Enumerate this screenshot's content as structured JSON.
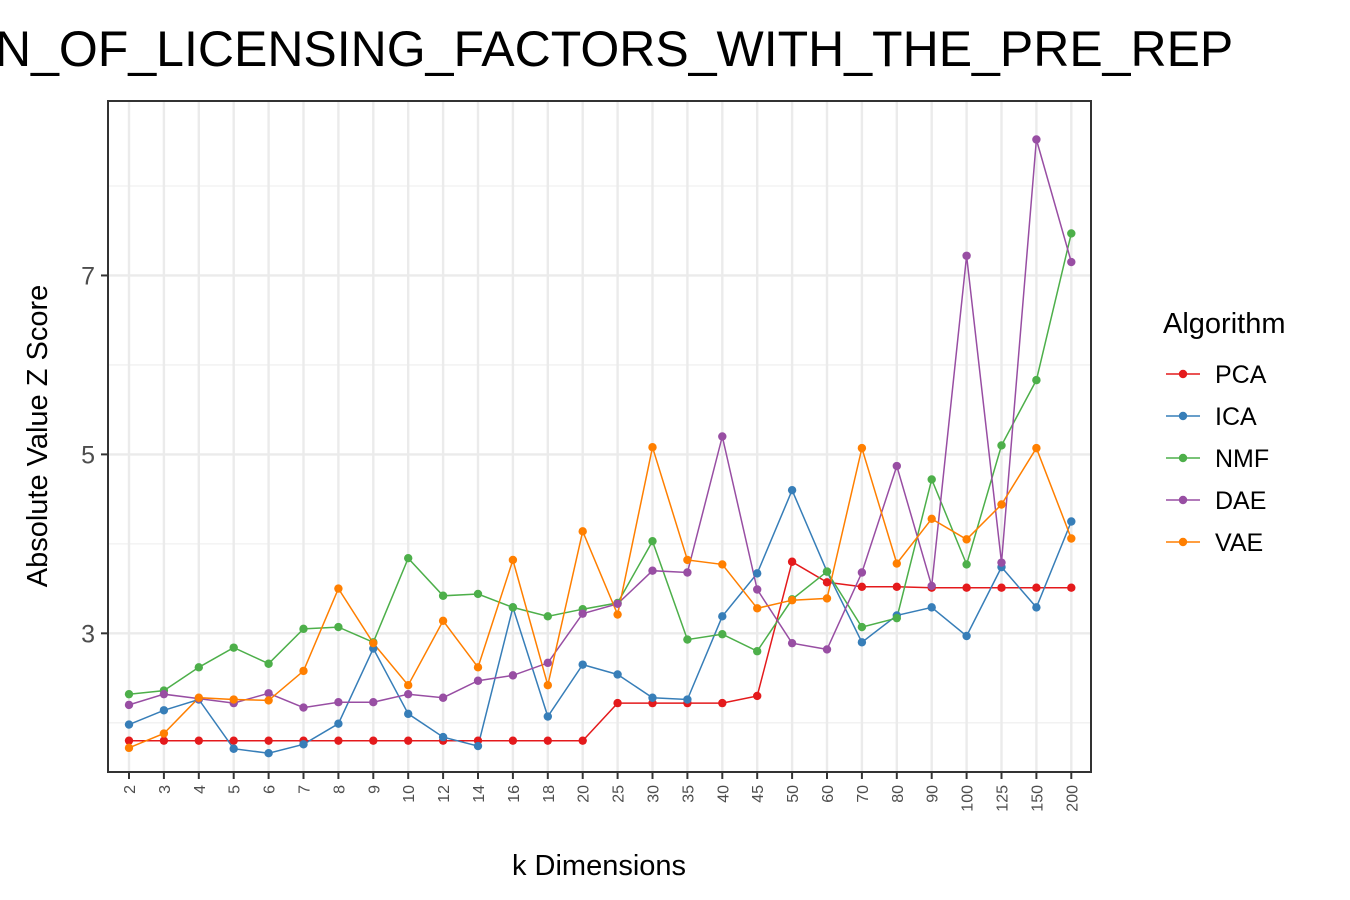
{
  "chart_data": {
    "type": "line",
    "title": "N_OF_LICENSING_FACTORS_WITH_THE_PRE_REP",
    "xlabel": "k Dimensions",
    "ylabel": "Absolute Value Z Score",
    "categories": [
      "2",
      "3",
      "4",
      "5",
      "6",
      "7",
      "8",
      "9",
      "10",
      "12",
      "14",
      "16",
      "18",
      "20",
      "25",
      "30",
      "35",
      "40",
      "45",
      "50",
      "60",
      "70",
      "80",
      "90",
      "100",
      "125",
      "150",
      "200"
    ],
    "ylim": [
      1.45,
      8.95
    ],
    "yticks": [
      3,
      5,
      7
    ],
    "grid": true,
    "legend_title": "Algorithm",
    "legend_position": "right",
    "series": [
      {
        "name": "PCA",
        "color": "#E41A1C",
        "values": [
          1.8,
          1.8,
          1.8,
          1.8,
          1.8,
          1.8,
          1.8,
          1.8,
          1.8,
          1.8,
          1.8,
          1.8,
          1.8,
          1.8,
          2.22,
          2.22,
          2.22,
          2.22,
          2.3,
          3.8,
          3.57,
          3.52,
          3.52,
          3.51,
          3.51,
          3.51,
          3.51,
          3.51
        ]
      },
      {
        "name": "ICA",
        "color": "#377EB8",
        "values": [
          1.98,
          2.14,
          2.26,
          1.71,
          1.66,
          1.76,
          1.99,
          2.83,
          2.1,
          1.84,
          1.74,
          3.29,
          2.07,
          2.65,
          2.54,
          2.28,
          2.26,
          3.19,
          3.67,
          4.6,
          3.69,
          2.9,
          3.2,
          3.29,
          2.97,
          3.74,
          3.29,
          4.25
        ]
      },
      {
        "name": "NMF",
        "color": "#4DAF4A",
        "values": [
          2.32,
          2.36,
          2.62,
          2.84,
          2.66,
          3.05,
          3.07,
          2.9,
          3.84,
          3.42,
          3.44,
          3.29,
          3.19,
          3.27,
          3.34,
          4.03,
          2.93,
          2.99,
          2.8,
          3.38,
          3.69,
          3.07,
          3.17,
          4.72,
          3.77,
          5.1,
          5.83,
          7.47
        ]
      },
      {
        "name": "DAE",
        "color": "#984EA3",
        "values": [
          2.2,
          2.32,
          2.27,
          2.22,
          2.33,
          2.17,
          2.23,
          2.23,
          2.32,
          2.28,
          2.47,
          2.53,
          2.67,
          3.22,
          3.33,
          3.7,
          3.68,
          5.2,
          3.49,
          2.89,
          2.82,
          3.68,
          4.87,
          3.53,
          7.22,
          3.79,
          8.52,
          7.15
        ]
      },
      {
        "name": "VAE",
        "color": "#FF7F00",
        "values": [
          1.72,
          1.88,
          2.28,
          2.26,
          2.25,
          2.58,
          3.5,
          2.89,
          2.42,
          3.14,
          2.62,
          3.82,
          2.42,
          4.14,
          3.21,
          5.08,
          3.82,
          3.77,
          3.28,
          3.37,
          3.39,
          5.07,
          3.78,
          4.28,
          4.05,
          4.44,
          5.07,
          4.06
        ]
      }
    ]
  }
}
